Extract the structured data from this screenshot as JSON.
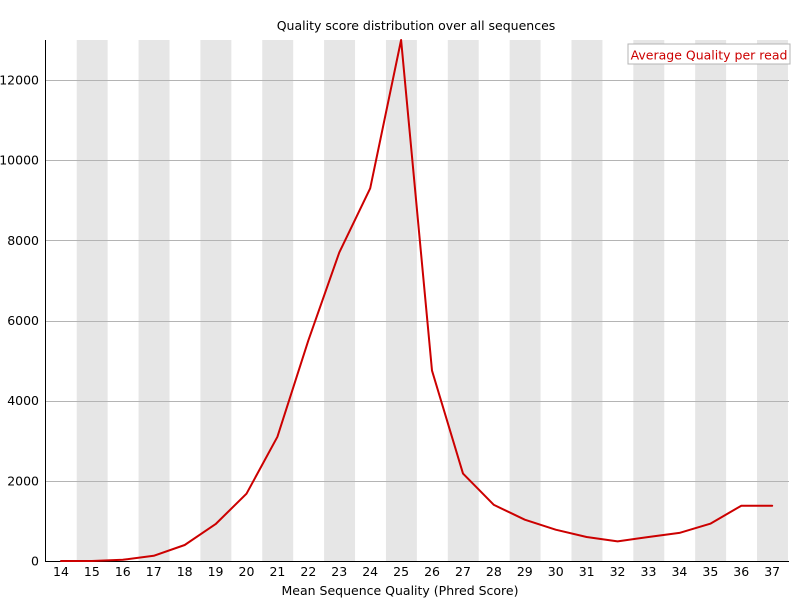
{
  "chart_data": {
    "type": "line",
    "title": "Quality score distribution over all sequences",
    "xlabel": "Mean Sequence Quality (Phred Score)",
    "ylabel": "",
    "categories": [
      "14",
      "15",
      "16",
      "17",
      "18",
      "19",
      "20",
      "21",
      "22",
      "23",
      "24",
      "25",
      "26",
      "27",
      "28",
      "29",
      "30",
      "31",
      "32",
      "33",
      "34",
      "35",
      "36",
      "37"
    ],
    "series": [
      {
        "name": "Average Quality per read",
        "values": [
          0,
          0,
          30,
          130,
          400,
          920,
          1680,
          3100,
          5500,
          7700,
          9300,
          13000,
          4750,
          2180,
          1400,
          1030,
          780,
          600,
          490,
          600,
          700,
          930,
          1380,
          1380
        ]
      }
    ],
    "yticks": [
      0,
      2000,
      4000,
      6000,
      8000,
      10000,
      12000
    ],
    "ylim": [
      0,
      13000
    ],
    "legend": "top-right",
    "grid": true,
    "colors": {
      "line": "#cc0000",
      "stripe": "#e6e6e6",
      "gridline": "#b4b4b4",
      "axis": "#000000"
    }
  }
}
